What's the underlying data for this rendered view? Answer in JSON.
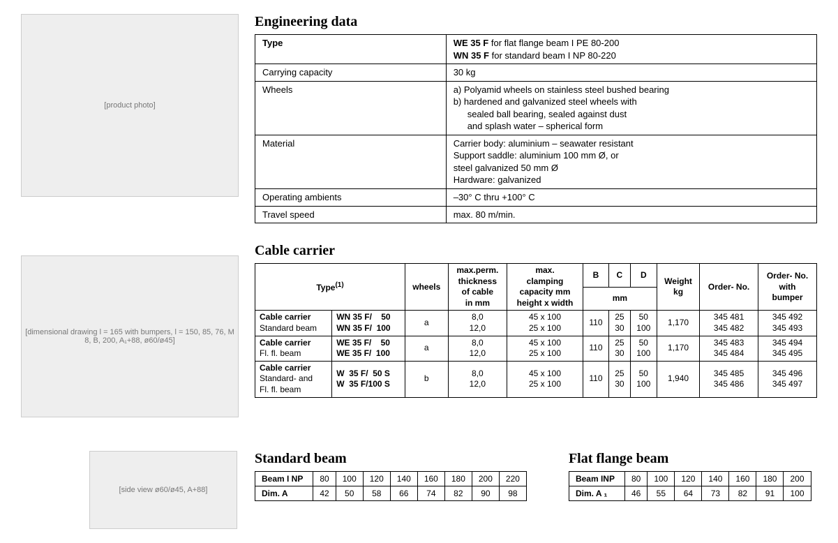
{
  "engineering": {
    "heading": "Engineering data",
    "rows": {
      "type_label": "Type",
      "type_value_line1_bold": "WE 35 F",
      "type_value_line1_rest": " for flat flange beam I PE 80-200",
      "type_value_line2_bold": "WN 35 F",
      "type_value_line2_rest": " for standard beam I NP 80-220",
      "capacity_label": "Carrying capacity",
      "capacity_value": "30 kg",
      "wheels_label": "Wheels",
      "wheels_a": "a) Polyamid wheels on stainless steel bushed bearing",
      "wheels_b": "b) hardened and galvanized steel wheels with",
      "wheels_b2": "sealed ball bearing, sealed against dust",
      "wheels_b3": "and splash water – spherical form",
      "material_label": "Material",
      "material_1": "Carrier body: aluminium – seawater resistant",
      "material_2": "Support saddle: aluminium 100 mm Ø, or",
      "material_3": "steel galvanized 50 mm Ø",
      "material_4": "Hardware: galvanized",
      "ambient_label": "Operating ambients",
      "ambient_value": "–30° C thru +100° C",
      "speed_label": "Travel speed",
      "speed_value": "max. 80 m/min."
    }
  },
  "cable": {
    "heading": "Cable carrier",
    "head": {
      "type": "Type",
      "type_sup": "(1)",
      "wheels": "wheels",
      "thick1": "max.perm.",
      "thick2": "thickness",
      "thick3": "of cable",
      "thick4": "in mm",
      "clamp1": "max.",
      "clamp2": "clamping",
      "clamp3": "capacity mm",
      "clamp4": "height x width",
      "B": "B",
      "C": "C",
      "D": "D",
      "mm": "mm",
      "weight1": "Weight",
      "weight2": "kg",
      "order": "Order- No.",
      "orderb1": "Order- No.",
      "orderb2": "with",
      "orderb3": "bumper"
    },
    "rows": [
      {
        "name1": "Cable carrier",
        "name2": "Standard beam",
        "model1": "WN 35 F/    50",
        "model2": "WN 35 F/  100",
        "wh": "a",
        "thk1": "8,0",
        "thk2": "12,0",
        "clamp1": "45 x 100",
        "clamp2": "25 x 100",
        "B": "110",
        "C1": "25",
        "C2": "30",
        "D1": "50",
        "D2": "100",
        "wt": "1,170",
        "on1": "345 481",
        "on2": "345 482",
        "ob1": "345 492",
        "ob2": "345 493"
      },
      {
        "name1": "Cable carrier",
        "name2": "Fl. fl. beam",
        "model1": "WE 35 F/    50",
        "model2": "WE 35 F/  100",
        "wh": "a",
        "thk1": "8,0",
        "thk2": "12,0",
        "clamp1": "45 x 100",
        "clamp2": "25 x 100",
        "B": "110",
        "C1": "25",
        "C2": "30",
        "D1": "50",
        "D2": "100",
        "wt": "1,170",
        "on1": "345 483",
        "on2": "345 484",
        "ob1": "345 494",
        "ob2": "345 495"
      },
      {
        "name1": "Cable carrier",
        "name2": "Standard- and",
        "name3": "Fl. fl. beam",
        "model1": "W  35 F/  50 S",
        "model2": "W  35 F/100 S",
        "wh": "b",
        "thk1": "8,0",
        "thk2": "12,0",
        "clamp1": "45 x 100",
        "clamp2": "25 x 100",
        "B": "110",
        "C1": "25",
        "C2": "30",
        "D1": "50",
        "D2": "100",
        "wt": "1,940",
        "on1": "345 485",
        "on2": "345 486",
        "ob1": "345 496",
        "ob2": "345 497"
      }
    ]
  },
  "standard_beam": {
    "heading": "Standard beam",
    "r1_label": "Beam I NP",
    "r1": [
      "80",
      "100",
      "120",
      "140",
      "160",
      "180",
      "200",
      "220"
    ],
    "r2_label": "Dim. A",
    "r2": [
      "42",
      "50",
      "58",
      "66",
      "74",
      "82",
      "90",
      "98"
    ]
  },
  "flat_beam": {
    "heading": "Flat flange beam",
    "r1_label": "Beam INP",
    "r1": [
      "80",
      "100",
      "120",
      "140",
      "160",
      "180",
      "200"
    ],
    "r2_label": "Dim. A ₁",
    "r2": [
      "46",
      "55",
      "64",
      "73",
      "82",
      "91",
      "100"
    ]
  },
  "placeholders": {
    "photo": "[product photo]",
    "dim": "[dimensional drawing\nl = 165 with bumpers, l = 150, 85, 76, M 8, B, 200, A₁+88, ø60/ø45]",
    "side": "[side view ø60/ø45, A+88]"
  }
}
